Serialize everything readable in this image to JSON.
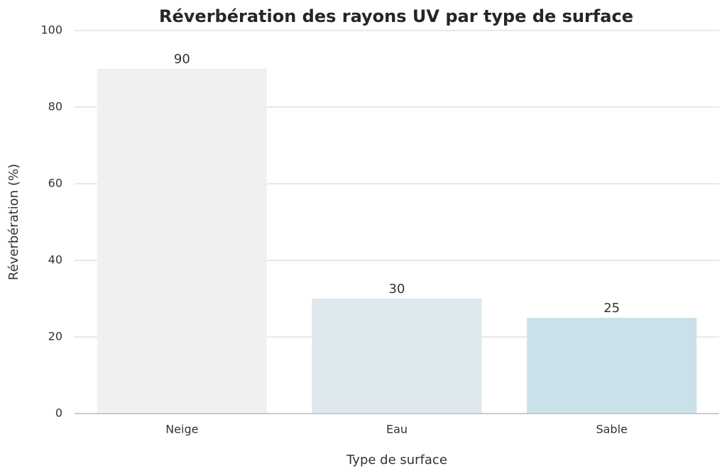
{
  "chart_data": {
    "type": "bar",
    "title": "Réverbération des rayons UV par type de surface",
    "x_label": "Type de surface",
    "y_label": "Réverbération (%)",
    "categories": [
      "Neige",
      "Eau",
      "Sable"
    ],
    "values": [
      90,
      30,
      25
    ],
    "colors": [
      "#eef0f2",
      "#dde8ef",
      "#cbe1ea"
    ],
    "ylim": [
      0,
      100
    ],
    "yticks": [
      0,
      20,
      40,
      60,
      80,
      100
    ],
    "grid": true
  }
}
